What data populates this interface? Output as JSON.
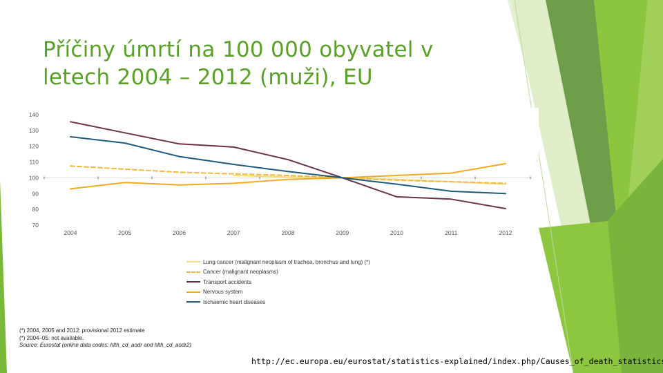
{
  "slide": {
    "title_line1": "Příčiny úmrtí na 100 000 obyvatel v",
    "title_line2": "letech 2004 – 2012 (muži), EU",
    "source_url": "http://ec.europa.eu/eurostat/statistics-explained/index.php/Causes_of_death_statistics/cs"
  },
  "colors": {
    "accent_green": "#5aa028",
    "lung_cancer": "#f0dc86",
    "cancer": "#f1b93b",
    "transport": "#6b3246",
    "nervous": "#eeaa22",
    "ischaemic": "#1d5a7a"
  },
  "chart_data": {
    "type": "line",
    "title": "",
    "xlabel": "",
    "ylabel": "",
    "categories": [
      "2004",
      "2005",
      "2006",
      "2007",
      "2008",
      "2009",
      "2010",
      "2011",
      "2012"
    ],
    "ylim": [
      70,
      140
    ],
    "yticks": [
      70,
      80,
      90,
      100,
      110,
      120,
      130,
      140
    ],
    "grid": false,
    "legend_position": "bottom",
    "series": [
      {
        "name": "Lung cancer (malignant neoplasm of trachea, bronchus and lung) (*)",
        "style": "solid",
        "color": "#f0dc86",
        "values": [
          null,
          null,
          null,
          101.5,
          100.5,
          100,
          99,
          97.5,
          96
        ]
      },
      {
        "name": "Cancer (malignant neoplasms)",
        "style": "dashed",
        "color": "#f1b93b",
        "values": [
          107.5,
          105.5,
          103.5,
          102.5,
          101.5,
          100,
          98.5,
          97.5,
          96.5
        ]
      },
      {
        "name": "Transport accidents",
        "style": "solid",
        "color": "#6b3246",
        "values": [
          135.5,
          128.5,
          121.5,
          119.5,
          111.5,
          100,
          88,
          86.5,
          80.5
        ]
      },
      {
        "name": "Nervous system",
        "style": "solid",
        "color": "#eeaa22",
        "values": [
          93,
          97,
          95.5,
          96.5,
          99,
          100,
          101.5,
          103,
          109
        ]
      },
      {
        "name": "Ischaemic heart diseases",
        "style": "solid",
        "color": "#1d5a7a",
        "values": [
          126,
          122,
          113.5,
          108.5,
          104,
          100,
          96,
          91.5,
          90
        ]
      }
    ],
    "footnotes": [
      "(*) 2004, 2005 and 2012: provisional 2012 estimate",
      "(*) 2004–05: not available.",
      "Source: Eurostat (online data codes: hlth_cd_aodr and hlth_cd_aodr2)"
    ]
  }
}
